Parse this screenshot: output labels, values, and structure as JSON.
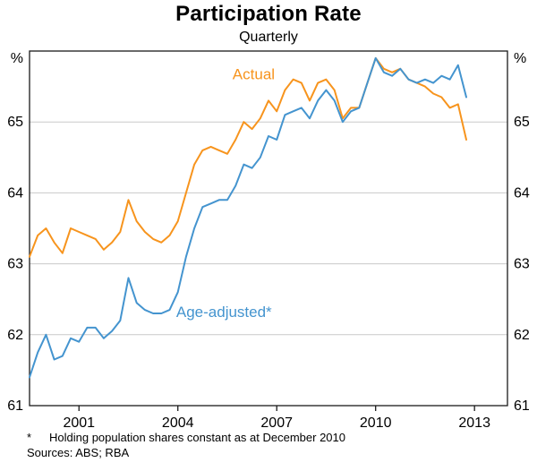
{
  "header": {
    "title": "Participation Rate",
    "subtitle": "Quarterly"
  },
  "footnotes": {
    "asterisk": "*",
    "note": "Holding population shares constant as at December 2010",
    "sources": "Sources: ABS; RBA"
  },
  "chart_data": {
    "type": "line",
    "title": "Participation Rate",
    "subtitle": "Quarterly",
    "unit": "%",
    "x_start": 2000.0,
    "x_step": 0.25,
    "x_domain": [
      2000,
      2014.5
    ],
    "y_domain": [
      61,
      66
    ],
    "y_ticks": [
      61,
      62,
      63,
      64,
      65
    ],
    "x_tick_labels": [
      "2001",
      "2004",
      "2007",
      "2010",
      "2013"
    ],
    "x_tick_positions": [
      2001.5,
      2004.5,
      2007.5,
      2010.5,
      2013.5
    ],
    "grid": "horizontal",
    "grid_color": "#c9c9c9",
    "axis_color": "#1a1a1a",
    "legend_position": "inline-annotations",
    "series": [
      {
        "name": "Actual",
        "color": "#F7941D",
        "label_pos": [
          2006.8,
          65.6
        ],
        "values": [
          63.1,
          63.4,
          63.5,
          63.3,
          63.15,
          63.5,
          63.45,
          63.4,
          63.35,
          63.2,
          63.3,
          63.45,
          63.9,
          63.6,
          63.45,
          63.35,
          63.3,
          63.4,
          63.6,
          64.0,
          64.4,
          64.6,
          64.65,
          64.6,
          64.55,
          64.75,
          65.0,
          64.9,
          65.05,
          65.3,
          65.15,
          65.45,
          65.6,
          65.55,
          65.3,
          65.55,
          65.6,
          65.45,
          65.05,
          65.2,
          65.2,
          65.55,
          65.9,
          65.75,
          65.7,
          65.75,
          65.6,
          65.55,
          65.5,
          65.4,
          65.35,
          65.2,
          65.25,
          64.75
        ]
      },
      {
        "name": "Age-adjusted*",
        "color": "#4494CF",
        "label_pos": [
          2005.9,
          62.25
        ],
        "values": [
          61.4,
          61.75,
          62.0,
          61.65,
          61.7,
          61.95,
          61.9,
          62.1,
          62.1,
          61.95,
          62.05,
          62.2,
          62.8,
          62.45,
          62.35,
          62.3,
          62.3,
          62.35,
          62.6,
          63.1,
          63.5,
          63.8,
          63.85,
          63.9,
          63.9,
          64.1,
          64.4,
          64.35,
          64.5,
          64.8,
          64.75,
          65.1,
          65.15,
          65.2,
          65.05,
          65.3,
          65.45,
          65.3,
          65.0,
          65.15,
          65.2,
          65.55,
          65.9,
          65.7,
          65.65,
          65.75,
          65.6,
          65.55,
          65.6,
          65.55,
          65.65,
          65.6,
          65.8,
          65.35
        ]
      }
    ]
  }
}
